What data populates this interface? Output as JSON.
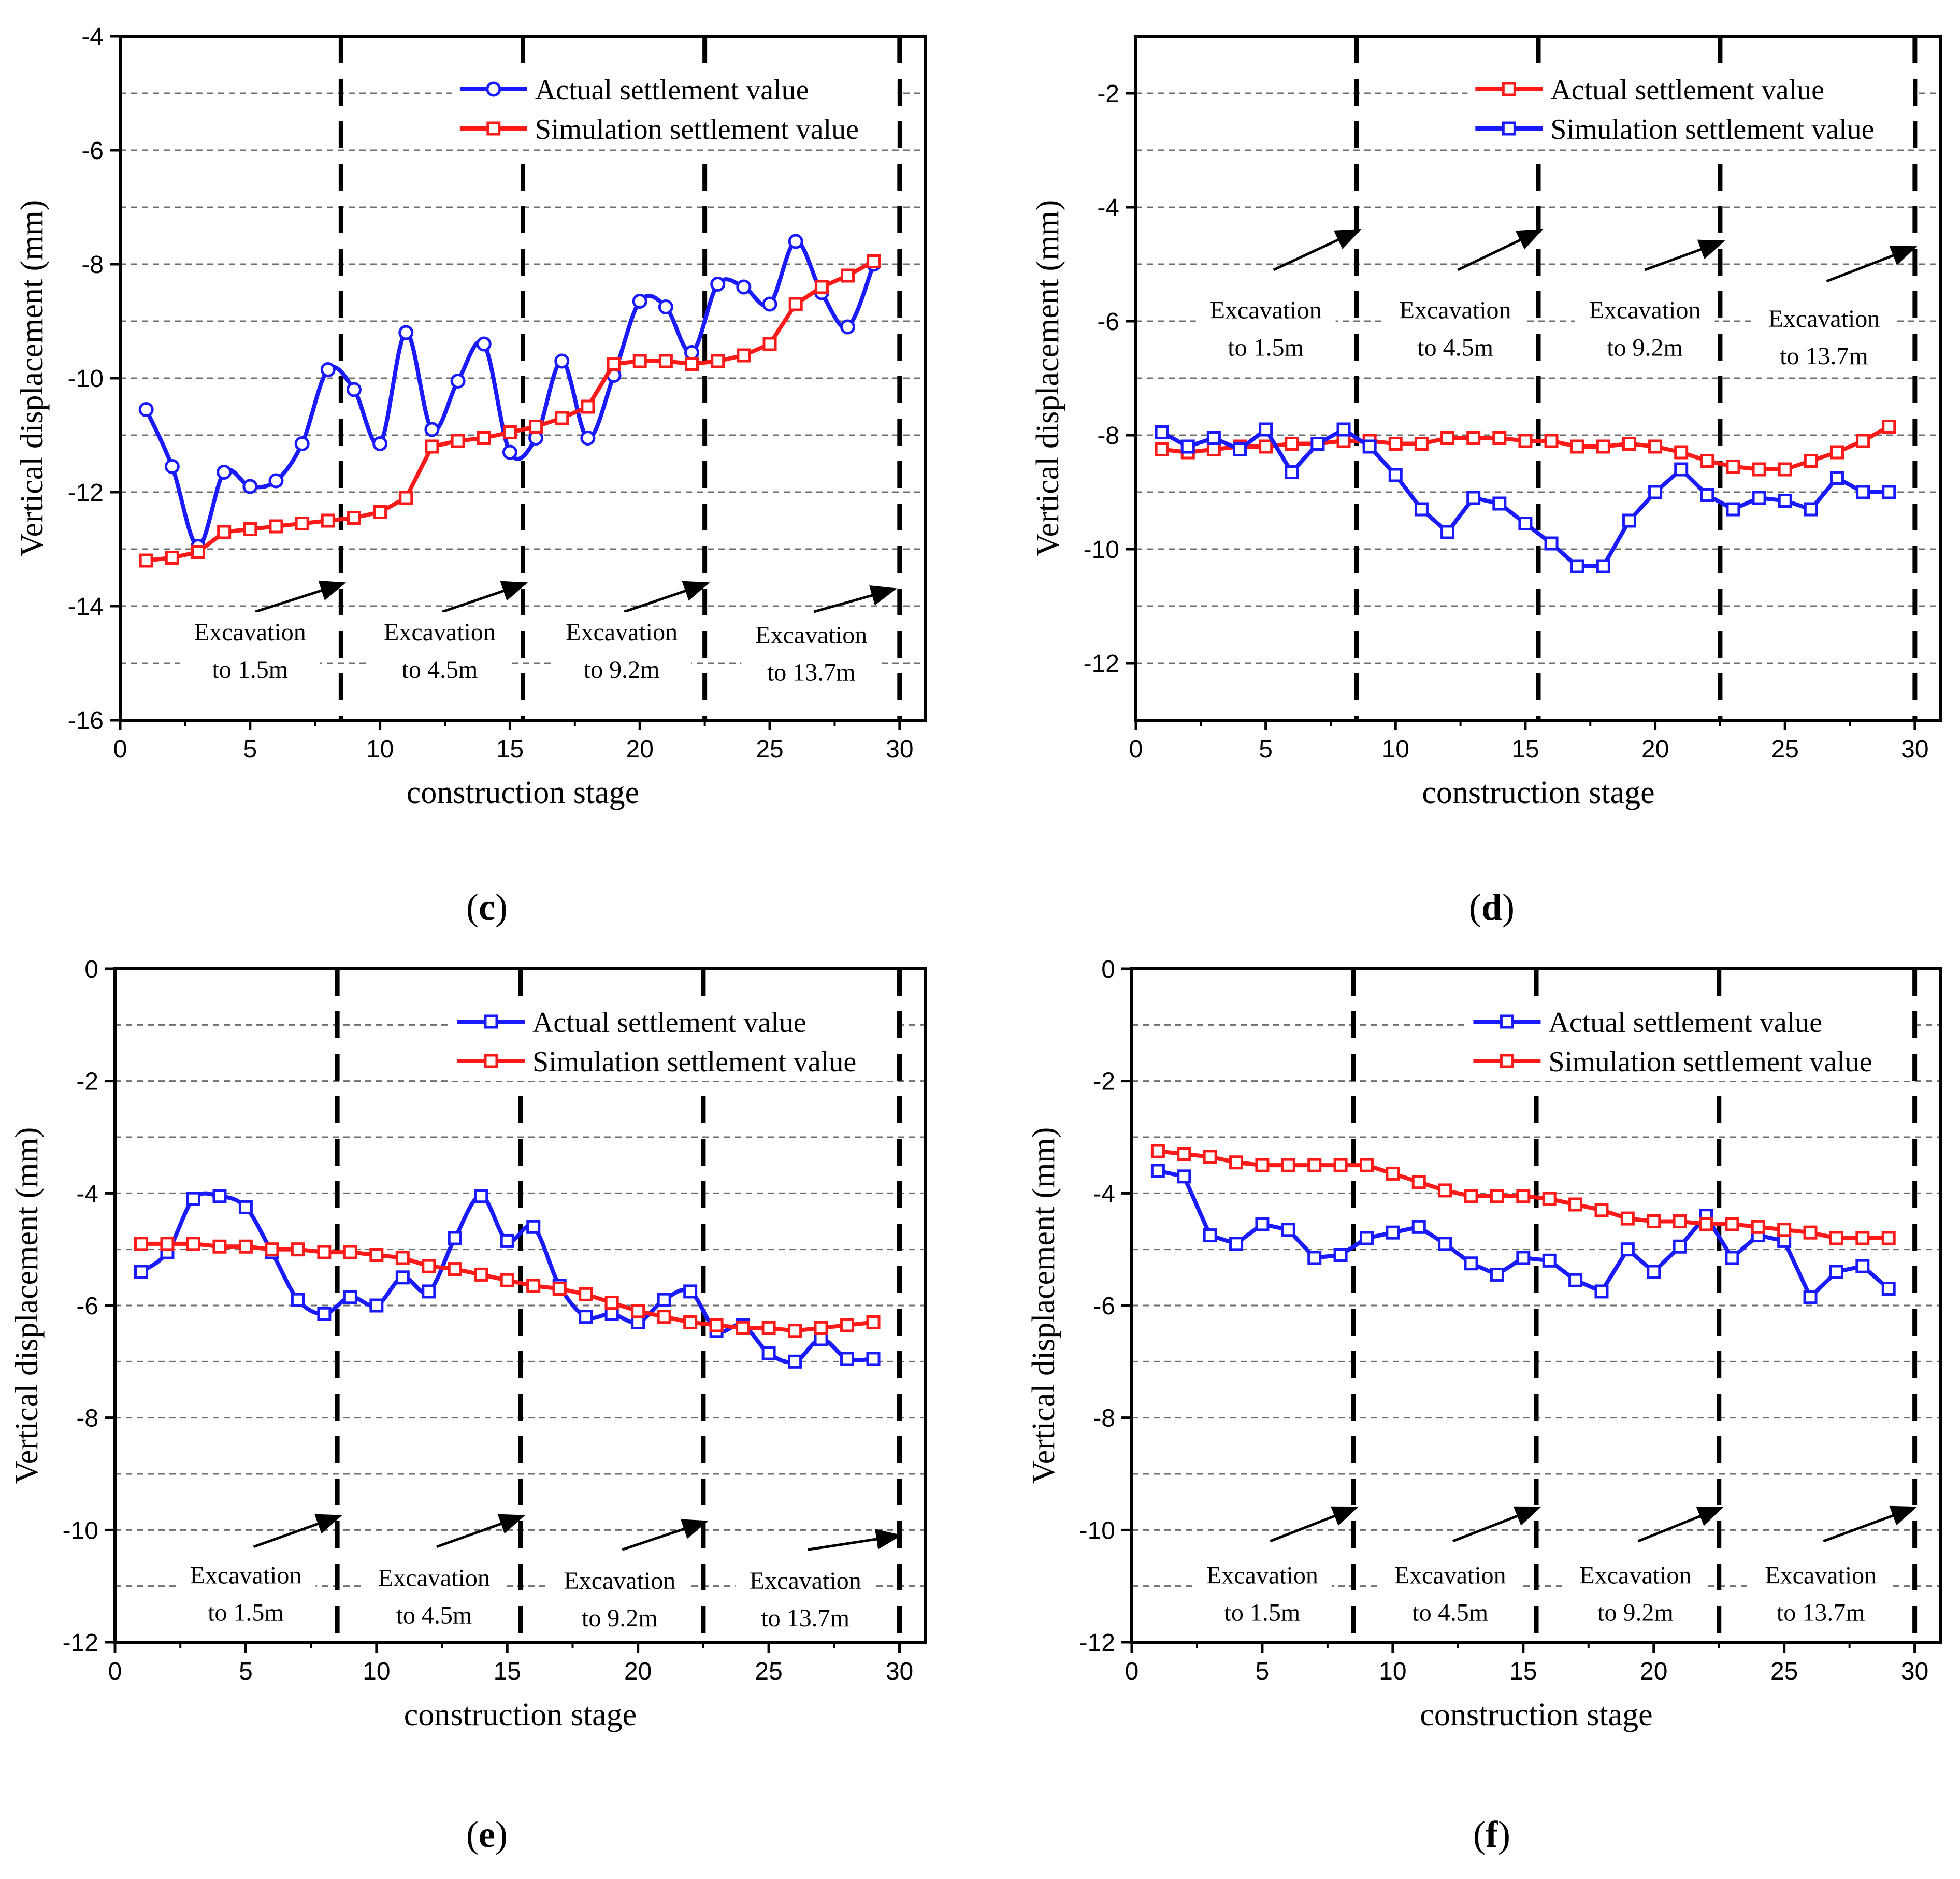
{
  "chart_data": [
    {
      "id": "c",
      "panel_label": "c",
      "type": "line",
      "xlabel": "construction stage",
      "ylabel": "Vertical displacement (mm)",
      "xlim": [
        0,
        31
      ],
      "ylim": [
        -16,
        -4
      ],
      "xticks": [
        0,
        5,
        10,
        15,
        20,
        25,
        30
      ],
      "yticks": [
        -16,
        -14,
        -12,
        -10,
        -8,
        -6,
        -4
      ],
      "grid_y": [
        -15,
        -14,
        -13,
        -12,
        -11,
        -10,
        -9,
        -8,
        -7,
        -6,
        -5
      ],
      "stage_lines": [
        8.5,
        15.5,
        22.5,
        30
      ],
      "legend_placement": "top-center",
      "series": [
        {
          "name": "Actual settlement value",
          "color": "#1a1aff",
          "marker": "circle",
          "smooth": true,
          "x": [
            1,
            2,
            3,
            4,
            5,
            6,
            7,
            8,
            9,
            10,
            11,
            12,
            13,
            14,
            15,
            16,
            17,
            18,
            19,
            20,
            21,
            22,
            23,
            24,
            25,
            26,
            27,
            28,
            29
          ],
          "y": [
            -10.55,
            -11.55,
            -12.95,
            -11.65,
            -11.9,
            -11.8,
            -11.15,
            -9.85,
            -10.2,
            -11.15,
            -9.2,
            -10.9,
            -10.05,
            -9.4,
            -11.3,
            -11.05,
            -9.7,
            -11.05,
            -9.95,
            -8.65,
            -8.75,
            -9.55,
            -8.35,
            -8.4,
            -8.7,
            -7.6,
            -8.5,
            -9.1,
            -8.0
          ]
        },
        {
          "name": "Simulation settlement value",
          "color": "#ff1a1a",
          "marker": "square",
          "smooth": false,
          "x": [
            1,
            2,
            3,
            4,
            5,
            6,
            7,
            8,
            9,
            10,
            11,
            12,
            13,
            14,
            15,
            16,
            17,
            18,
            19,
            20,
            21,
            22,
            23,
            24,
            25,
            26,
            27,
            28,
            29
          ],
          "y": [
            -13.2,
            -13.15,
            -13.05,
            -12.7,
            -12.65,
            -12.6,
            -12.55,
            -12.5,
            -12.45,
            -12.35,
            -12.1,
            -11.2,
            -11.1,
            -11.05,
            -10.95,
            -10.85,
            -10.7,
            -10.5,
            -9.75,
            -9.7,
            -9.7,
            -9.75,
            -9.7,
            -9.6,
            -9.4,
            -8.7,
            -8.4,
            -8.2,
            -7.95
          ]
        }
      ],
      "annotations": [
        {
          "line1": "Excavation",
          "line2": "to 1.5m",
          "x_text": 5,
          "y_text": -14.6,
          "arrow_from": [
            5.2,
            -14.1
          ],
          "arrow_to": [
            8.6,
            -13.6
          ]
        },
        {
          "line1": "Excavation",
          "line2": "to 4.5m",
          "x_text": 12.3,
          "y_text": -14.6,
          "arrow_from": [
            12.4,
            -14.1
          ],
          "arrow_to": [
            15.6,
            -13.6
          ]
        },
        {
          "line1": "Excavation",
          "line2": "to 9.2m",
          "x_text": 19.3,
          "y_text": -14.6,
          "arrow_from": [
            19.4,
            -14.1
          ],
          "arrow_to": [
            22.6,
            -13.6
          ]
        },
        {
          "line1": "Excavation",
          "line2": "to 13.7m",
          "x_text": 26.6,
          "y_text": -14.65,
          "arrow_from": [
            26.7,
            -14.1
          ],
          "arrow_to": [
            29.8,
            -13.7
          ]
        }
      ]
    },
    {
      "id": "d",
      "panel_label": "d",
      "type": "line",
      "xlabel": "construction stage",
      "ylabel": "Vertical displacement (mm)",
      "xlim": [
        0,
        31
      ],
      "ylim": [
        -13,
        -1
      ],
      "xticks": [
        0,
        5,
        10,
        15,
        20,
        25,
        30
      ],
      "yticks": [
        -12,
        -10,
        -8,
        -6,
        -4,
        -2
      ],
      "grid_y": [
        -12,
        -11,
        -10,
        -9,
        -8,
        -7,
        -6,
        -5,
        -4,
        -3,
        -2
      ],
      "stage_lines": [
        8.5,
        15.5,
        22.5,
        30
      ],
      "legend_placement": "top-center",
      "series": [
        {
          "name": "Actual settlement value",
          "color": "#ff1a1a",
          "marker": "square",
          "smooth": false,
          "x": [
            1,
            2,
            3,
            4,
            5,
            6,
            7,
            8,
            9,
            10,
            11,
            12,
            13,
            14,
            15,
            16,
            17,
            18,
            19,
            20,
            21,
            22,
            23,
            24,
            25,
            26,
            27,
            28,
            29
          ],
          "y": [
            -8.25,
            -8.3,
            -8.25,
            -8.2,
            -8.2,
            -8.15,
            -8.15,
            -8.1,
            -8.1,
            -8.15,
            -8.15,
            -8.05,
            -8.05,
            -8.05,
            -8.1,
            -8.1,
            -8.2,
            -8.2,
            -8.15,
            -8.2,
            -8.3,
            -8.45,
            -8.55,
            -8.6,
            -8.6,
            -8.45,
            -8.3,
            -8.1,
            -7.85
          ]
        },
        {
          "name": "Simulation settlement value",
          "color": "#1a1aff",
          "marker": "square",
          "smooth": false,
          "x": [
            1,
            2,
            3,
            4,
            5,
            6,
            7,
            8,
            9,
            10,
            11,
            12,
            13,
            14,
            15,
            16,
            17,
            18,
            19,
            20,
            21,
            22,
            23,
            24,
            25,
            26,
            27,
            28,
            29
          ],
          "y": [
            -7.95,
            -8.2,
            -8.05,
            -8.25,
            -7.9,
            -8.65,
            -8.15,
            -7.9,
            -8.2,
            -8.7,
            -9.3,
            -9.7,
            -9.1,
            -9.2,
            -9.55,
            -9.9,
            -10.3,
            -10.3,
            -9.5,
            -9.0,
            -8.6,
            -9.05,
            -9.3,
            -9.1,
            -9.15,
            -9.3,
            -8.75,
            -9.0,
            -9.0
          ]
        }
      ],
      "annotations": [
        {
          "line1": "Excavation",
          "line2": "to 1.5m",
          "x_text": 5,
          "y_text": -5.95,
          "arrow_from": [
            5.3,
            -5.1
          ],
          "arrow_to": [
            8.6,
            -4.4
          ]
        },
        {
          "line1": "Excavation",
          "line2": "to 4.5m",
          "x_text": 12.3,
          "y_text": -5.95,
          "arrow_from": [
            12.4,
            -5.1
          ],
          "arrow_to": [
            15.6,
            -4.4
          ]
        },
        {
          "line1": "Excavation",
          "line2": "to 9.2m",
          "x_text": 19.6,
          "y_text": -5.95,
          "arrow_from": [
            19.6,
            -5.1
          ],
          "arrow_to": [
            22.6,
            -4.6
          ]
        },
        {
          "line1": "Excavation",
          "line2": "to 13.7m",
          "x_text": 26.5,
          "y_text": -6.1,
          "arrow_from": [
            26.6,
            -5.3
          ],
          "arrow_to": [
            30,
            -4.7
          ]
        }
      ]
    },
    {
      "id": "e",
      "panel_label": "e",
      "type": "line",
      "xlabel": "construction stage",
      "ylabel": "Vertical displacement (mm)",
      "xlim": [
        0,
        31
      ],
      "ylim": [
        -12,
        0
      ],
      "xticks": [
        0,
        5,
        10,
        15,
        20,
        25,
        30
      ],
      "yticks": [
        -12,
        -10,
        -8,
        -6,
        -4,
        -2,
        0
      ],
      "grid_y": [
        -11,
        -10,
        -9,
        -8,
        -7,
        -6,
        -5,
        -4,
        -3,
        -2,
        -1
      ],
      "stage_lines": [
        8.5,
        15.5,
        22.5,
        30
      ],
      "legend_placement": "top-center",
      "series": [
        {
          "name": "Actual settlement value",
          "color": "#1a1aff",
          "marker": "square",
          "smooth": true,
          "x": [
            1,
            2,
            3,
            4,
            5,
            6,
            7,
            8,
            9,
            10,
            11,
            12,
            13,
            14,
            15,
            16,
            17,
            18,
            19,
            20,
            21,
            22,
            23,
            24,
            25,
            26,
            27,
            28,
            29
          ],
          "y": [
            -5.4,
            -5.05,
            -4.1,
            -4.05,
            -4.25,
            -5.05,
            -5.9,
            -6.15,
            -5.85,
            -6.0,
            -5.5,
            -5.75,
            -4.8,
            -4.05,
            -4.85,
            -4.6,
            -5.65,
            -6.2,
            -6.15,
            -6.3,
            -5.9,
            -5.75,
            -6.45,
            -6.35,
            -6.85,
            -7.0,
            -6.6,
            -6.95,
            -6.95
          ]
        },
        {
          "name": "Simulation settlement value",
          "color": "#ff1a1a",
          "marker": "square",
          "smooth": false,
          "x": [
            1,
            2,
            3,
            4,
            5,
            6,
            7,
            8,
            9,
            10,
            11,
            12,
            13,
            14,
            15,
            16,
            17,
            18,
            19,
            20,
            21,
            22,
            23,
            24,
            25,
            26,
            27,
            28,
            29
          ],
          "y": [
            -4.9,
            -4.9,
            -4.9,
            -4.95,
            -4.95,
            -5.0,
            -5.0,
            -5.05,
            -5.05,
            -5.1,
            -5.15,
            -5.3,
            -5.35,
            -5.45,
            -5.55,
            -5.65,
            -5.7,
            -5.8,
            -5.95,
            -6.1,
            -6.2,
            -6.3,
            -6.35,
            -6.4,
            -6.4,
            -6.45,
            -6.4,
            -6.35,
            -6.3
          ]
        }
      ],
      "annotations": [
        {
          "line1": "Excavation",
          "line2": "to 1.5m",
          "x_text": 5,
          "y_text": -10.95,
          "arrow_from": [
            5.3,
            -10.3
          ],
          "arrow_to": [
            8.6,
            -9.75
          ]
        },
        {
          "line1": "Excavation",
          "line2": "to 4.5m",
          "x_text": 12.2,
          "y_text": -11.0,
          "arrow_from": [
            12.3,
            -10.3
          ],
          "arrow_to": [
            15.6,
            -9.75
          ]
        },
        {
          "line1": "Excavation",
          "line2": "to 9.2m",
          "x_text": 19.3,
          "y_text": -11.05,
          "arrow_from": [
            19.4,
            -10.35
          ],
          "arrow_to": [
            22.6,
            -9.85
          ]
        },
        {
          "line1": "Excavation",
          "line2": "to 13.7m",
          "x_text": 26.4,
          "y_text": -11.05,
          "arrow_from": [
            26.5,
            -10.35
          ],
          "arrow_to": [
            30,
            -10.1
          ]
        }
      ]
    },
    {
      "id": "f",
      "panel_label": "f",
      "type": "line",
      "xlabel": "construction stage",
      "ylabel": "Vertical displacement (mm)",
      "xlim": [
        0,
        31
      ],
      "ylim": [
        -12,
        0
      ],
      "xticks": [
        0,
        5,
        10,
        15,
        20,
        25,
        30
      ],
      "yticks": [
        -12,
        -10,
        -8,
        -6,
        -4,
        -2,
        0
      ],
      "grid_y": [
        -11,
        -10,
        -9,
        -8,
        -7,
        -6,
        -5,
        -4,
        -3,
        -2,
        -1
      ],
      "stage_lines": [
        8.5,
        15.5,
        22.5,
        30
      ],
      "legend_placement": "top-center",
      "series": [
        {
          "name": "Actual settlement value",
          "color": "#1a1aff",
          "marker": "square",
          "smooth": false,
          "x": [
            1,
            2,
            3,
            4,
            5,
            6,
            7,
            8,
            9,
            10,
            11,
            12,
            13,
            14,
            15,
            16,
            17,
            18,
            19,
            20,
            21,
            22,
            23,
            24,
            25,
            26,
            27,
            28,
            29
          ],
          "y": [
            -3.6,
            -3.7,
            -4.75,
            -4.9,
            -4.55,
            -4.65,
            -5.15,
            -5.1,
            -4.8,
            -4.7,
            -4.6,
            -4.9,
            -5.25,
            -5.45,
            -5.15,
            -5.2,
            -5.55,
            -5.75,
            -5.0,
            -5.4,
            -4.95,
            -4.4,
            -5.15,
            -4.75,
            -4.85,
            -5.85,
            -5.4,
            -5.3,
            -5.7
          ]
        },
        {
          "name": "Simulation settlement value",
          "color": "#ff1a1a",
          "marker": "square",
          "smooth": false,
          "x": [
            1,
            2,
            3,
            4,
            5,
            6,
            7,
            8,
            9,
            10,
            11,
            12,
            13,
            14,
            15,
            16,
            17,
            18,
            19,
            20,
            21,
            22,
            23,
            24,
            25,
            26,
            27,
            28,
            29
          ],
          "y": [
            -3.25,
            -3.3,
            -3.35,
            -3.45,
            -3.5,
            -3.5,
            -3.5,
            -3.5,
            -3.5,
            -3.65,
            -3.8,
            -3.95,
            -4.05,
            -4.05,
            -4.05,
            -4.1,
            -4.2,
            -4.3,
            -4.45,
            -4.5,
            -4.5,
            -4.55,
            -4.55,
            -4.6,
            -4.65,
            -4.7,
            -4.8,
            -4.8,
            -4.8
          ]
        }
      ],
      "annotations": [
        {
          "line1": "Excavation",
          "line2": "to 1.5m",
          "x_text": 5,
          "y_text": -10.95,
          "arrow_from": [
            5.3,
            -10.2
          ],
          "arrow_to": [
            8.6,
            -9.6
          ]
        },
        {
          "line1": "Excavation",
          "line2": "to 4.5m",
          "x_text": 12.2,
          "y_text": -10.95,
          "arrow_from": [
            12.3,
            -10.2
          ],
          "arrow_to": [
            15.6,
            -9.6
          ]
        },
        {
          "line1": "Excavation",
          "line2": "to 9.2m",
          "x_text": 19.3,
          "y_text": -10.95,
          "arrow_from": [
            19.4,
            -10.2
          ],
          "arrow_to": [
            22.6,
            -9.6
          ]
        },
        {
          "line1": "Excavation",
          "line2": "to 13.7m",
          "x_text": 26.4,
          "y_text": -10.95,
          "arrow_from": [
            26.5,
            -10.2
          ],
          "arrow_to": [
            30,
            -9.6
          ]
        }
      ]
    }
  ]
}
